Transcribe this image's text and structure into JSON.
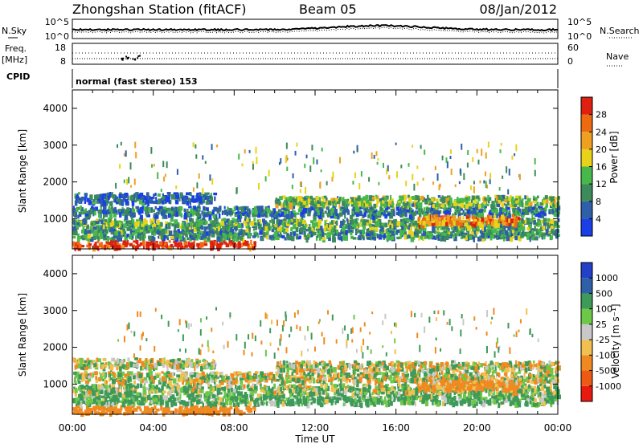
{
  "header": {
    "station": "Zhongshan Station (fitACF)",
    "beam": "Beam 05",
    "date": "08/Jan/2012"
  },
  "noise_panel": {
    "left_label": "N.Sky",
    "right_label": "N.Search",
    "left_ticks": [
      "10^5",
      "10^0"
    ],
    "right_ticks": [
      "10^5",
      "10^0"
    ]
  },
  "freq_panel": {
    "left_label_1": "Freq.",
    "left_label_2": "[MHz]",
    "left_ticks": [
      "18",
      "8"
    ],
    "right_label": "Nave",
    "right_ticks": [
      "60",
      "0"
    ]
  },
  "cpid_panel": {
    "label": "CPID",
    "text": "normal (fast stereo) 153"
  },
  "colors": {
    "power": [
      "#1a3fe6",
      "#2e5fa8",
      "#3d8a5a",
      "#47b84a",
      "#e8d21a",
      "#f0a020",
      "#ee6a10",
      "#dd2010"
    ],
    "velocity": [
      "#e81a10",
      "#ee5a14",
      "#f08a20",
      "#f0c050",
      "#c8c8c8",
      "#6ec848",
      "#3e9a58",
      "#2e5fa8",
      "#2440c8"
    ]
  },
  "chart_data": [
    {
      "type": "heatmap",
      "title": "Power",
      "ylabel": "Slant Range [km]",
      "yticks": [
        "1000",
        "2000",
        "3000",
        "4000"
      ],
      "ylim": [
        180,
        4500
      ],
      "xlim": [
        0,
        24
      ],
      "colorbar_label": "Power [dB]",
      "colorbar_ticks": [
        "4",
        "8",
        "12",
        "16",
        "20",
        "24",
        "28"
      ],
      "bands": [
        {
          "t0": 0.0,
          "t1": 9.0,
          "r": 300,
          "v": 30
        },
        {
          "t0": 0.0,
          "t1": 24.0,
          "r": 620,
          "v": 10
        },
        {
          "t0": 0.0,
          "t1": 24.0,
          "r": 900,
          "v": 12
        },
        {
          "t0": 0.0,
          "t1": 24.0,
          "r": 1230,
          "v": 8
        },
        {
          "t0": 0.0,
          "t1": 7.0,
          "r": 1600,
          "v": 6
        },
        {
          "t0": 10.0,
          "t1": 24.0,
          "r": 1520,
          "v": 14
        },
        {
          "t0": 17.0,
          "t1": 22.0,
          "r": 1000,
          "v": 24
        }
      ]
    },
    {
      "type": "heatmap",
      "title": "Velocity",
      "ylabel": "Slant Range [km]",
      "yticks": [
        "1000",
        "2000",
        "3000",
        "4000"
      ],
      "ylim": [
        180,
        4500
      ],
      "xlim": [
        0,
        24
      ],
      "xticks": [
        "00:00",
        "04:00",
        "08:00",
        "12:00",
        "16:00",
        "20:00",
        "00:00"
      ],
      "xlabel": "Time UT",
      "colorbar_label": "Velocity [m s⁻¹]",
      "colorbar_ticks": [
        "1000",
        "500",
        "100",
        "25",
        "-25",
        "-100",
        "-500",
        "-1000"
      ],
      "bands": [
        {
          "t0": 0.0,
          "t1": 9.0,
          "r": 300,
          "v": -300
        },
        {
          "t0": 0.0,
          "t1": 24.0,
          "r": 620,
          "v": 150
        },
        {
          "t0": 0.0,
          "t1": 24.0,
          "r": 900,
          "v": 80
        },
        {
          "t0": 0.0,
          "t1": 24.0,
          "r": 1230,
          "v": 0
        },
        {
          "t0": 0.0,
          "t1": 7.0,
          "r": 1600,
          "v": 10
        },
        {
          "t0": 10.0,
          "t1": 24.0,
          "r": 1520,
          "v": 0
        },
        {
          "t0": 17.0,
          "t1": 22.0,
          "r": 1000,
          "v": -200
        }
      ]
    }
  ]
}
